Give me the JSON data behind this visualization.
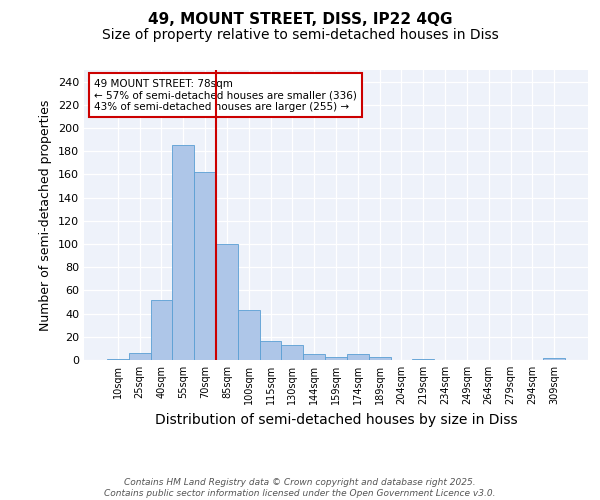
{
  "title1": "49, MOUNT STREET, DISS, IP22 4QG",
  "title2": "Size of property relative to semi-detached houses in Diss",
  "xlabel": "Distribution of semi-detached houses by size in Diss",
  "ylabel": "Number of semi-detached properties",
  "categories": [
    "10sqm",
    "25sqm",
    "40sqm",
    "55sqm",
    "70sqm",
    "85sqm",
    "100sqm",
    "115sqm",
    "130sqm",
    "144sqm",
    "159sqm",
    "174sqm",
    "189sqm",
    "204sqm",
    "219sqm",
    "234sqm",
    "249sqm",
    "264sqm",
    "279sqm",
    "294sqm",
    "309sqm"
  ],
  "values": [
    1,
    6,
    52,
    185,
    162,
    100,
    43,
    16,
    13,
    5,
    3,
    5,
    3,
    0,
    1,
    0,
    0,
    0,
    0,
    0,
    2
  ],
  "bar_color": "#aec6e8",
  "bar_edge_color": "#5a9fd4",
  "vline_x": 4.5,
  "vline_color": "#cc0000",
  "annotation_title": "49 MOUNT STREET: 78sqm",
  "annotation_line1": "← 57% of semi-detached houses are smaller (336)",
  "annotation_line2": "43% of semi-detached houses are larger (255) →",
  "annotation_box_color": "#cc0000",
  "ylim": [
    0,
    250
  ],
  "yticks": [
    0,
    20,
    40,
    60,
    80,
    100,
    120,
    140,
    160,
    180,
    200,
    220,
    240
  ],
  "background_color": "#eef2fa",
  "footer": "Contains HM Land Registry data © Crown copyright and database right 2025.\nContains public sector information licensed under the Open Government Licence v3.0.",
  "title_fontsize": 11,
  "subtitle_fontsize": 10,
  "xlabel_fontsize": 10,
  "ylabel_fontsize": 9
}
